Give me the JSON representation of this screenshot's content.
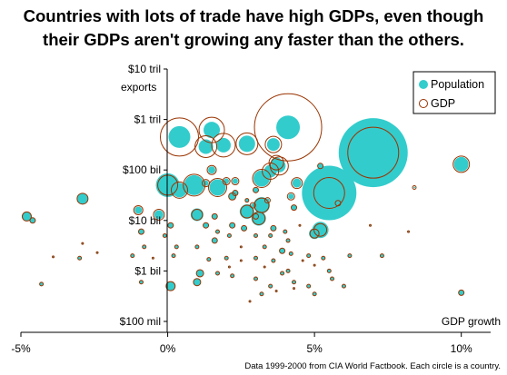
{
  "chart_data": {
    "type": "scatter",
    "title": "Countries with lots of trade have high GDPs, even though",
    "subtitle": "their GDPs aren't growing any faster than the others.",
    "xlabel": "GDP growth",
    "ylabel": "exports",
    "x_scale": "linear",
    "y_scale": "log",
    "xlim": [
      -5,
      11
    ],
    "ylim": [
      0.1,
      10000
    ],
    "x_ticks": [
      {
        "value": -5,
        "label": "-5%"
      },
      {
        "value": 0,
        "label": "0%"
      },
      {
        "value": 5,
        "label": "5%"
      },
      {
        "value": 10,
        "label": "10%"
      }
    ],
    "y_ticks": [
      {
        "value": 10000,
        "label": "$10 tril"
      },
      {
        "value": 1000,
        "label": "$1 tril"
      },
      {
        "value": 100,
        "label": "$100 bil"
      },
      {
        "value": 10,
        "label": "$10 bil"
      },
      {
        "value": 1,
        "label": "$1 bil"
      },
      {
        "value": 0.1,
        "label": "$100 mil"
      }
    ],
    "x_unit": "% GDP growth",
    "y_unit": "exports, US$ billions",
    "legend": {
      "placement": "top-right",
      "items": [
        {
          "label": "Population",
          "marker": "filled-circle",
          "color": "#33cccc"
        },
        {
          "label": "GDP",
          "marker": "open-circle",
          "color": "#993300"
        }
      ]
    },
    "annotation": "Data 1999-2000 from CIA World Factbook. Each circle is a country.",
    "colors": {
      "population": "#33cccc",
      "gdp": "#993300",
      "axis": "#000000"
    },
    "series": [
      {
        "label": "Population",
        "encoding": "bubble area",
        "color": "#33cccc"
      },
      {
        "label": "GDP",
        "encoding": "bubble outline area",
        "color": "#993300"
      }
    ],
    "points": [
      {
        "x": 4.1,
        "y": 700,
        "pop": 13,
        "gdp": 37
      },
      {
        "x": 0.4,
        "y": 450,
        "pop": 12,
        "gdp": 21
      },
      {
        "x": 1.5,
        "y": 620,
        "pop": 9,
        "gdp": 14
      },
      {
        "x": 1.3,
        "y": 290,
        "pop": 8,
        "gdp": 12
      },
      {
        "x": 1.9,
        "y": 310,
        "pop": 8,
        "gdp": 13
      },
      {
        "x": 2.7,
        "y": 330,
        "pop": 9,
        "gdp": 12
      },
      {
        "x": 3.6,
        "y": 320,
        "pop": 7,
        "gdp": 9
      },
      {
        "x": 7.0,
        "y": 220,
        "pop": 38,
        "gdp": 28
      },
      {
        "x": 5.5,
        "y": 35,
        "pop": 30,
        "gdp": 17
      },
      {
        "x": 10.0,
        "y": 130,
        "pop": 8,
        "gdp": 9
      },
      {
        "x": 3.2,
        "y": 68,
        "pop": 9,
        "gdp": 10
      },
      {
        "x": 3.5,
        "y": 95,
        "pop": 7,
        "gdp": 9
      },
      {
        "x": 3.8,
        "y": 120,
        "pop": 7,
        "gdp": 10
      },
      {
        "x": 3.7,
        "y": 140,
        "pop": 6,
        "gdp": 8
      },
      {
        "x": 0.0,
        "y": 50,
        "pop": 13,
        "gdp": 11
      },
      {
        "x": 0.9,
        "y": 50,
        "pop": 11,
        "gdp": 12
      },
      {
        "x": 1.7,
        "y": 45,
        "pop": 9,
        "gdp": 10
      },
      {
        "x": 0.4,
        "y": 40,
        "pop": 8,
        "gdp": 9
      },
      {
        "x": 1.5,
        "y": 100,
        "pop": 4,
        "gdp": 5
      },
      {
        "x": 2.2,
        "y": 30,
        "pop": 4,
        "gdp": 4
      },
      {
        "x": 3.2,
        "y": 20,
        "pop": 9,
        "gdp": 8
      },
      {
        "x": 2.7,
        "y": 15,
        "pop": 8,
        "gdp": 7
      },
      {
        "x": 3.1,
        "y": 11,
        "pop": 8,
        "gdp": 7
      },
      {
        "x": 5.2,
        "y": 6.5,
        "pop": 9,
        "gdp": 7
      },
      {
        "x": 5.0,
        "y": 5.5,
        "pop": 6,
        "gdp": 5
      },
      {
        "x": 1.0,
        "y": 13,
        "pop": 7,
        "gdp": 6
      },
      {
        "x": -1.0,
        "y": 16,
        "pop": 4,
        "gdp": 5
      },
      {
        "x": -0.3,
        "y": 13,
        "pop": 5,
        "gdp": 6
      },
      {
        "x": -4.8,
        "y": 12,
        "pop": 5,
        "gdp": 5
      },
      {
        "x": -4.6,
        "y": 10,
        "pop": 3,
        "gdp": 3
      },
      {
        "x": -2.9,
        "y": 27,
        "pop": 6,
        "gdp": 6
      },
      {
        "x": 4.4,
        "y": 55,
        "pop": 5,
        "gdp": 6
      },
      {
        "x": 5.2,
        "y": 120,
        "pop": 3,
        "gdp": 3
      },
      {
        "x": 2.3,
        "y": 60,
        "pop": 3,
        "gdp": 4
      },
      {
        "x": 2.0,
        "y": 60,
        "pop": 3,
        "gdp": 4
      },
      {
        "x": 1.3,
        "y": 55,
        "pop": 3,
        "gdp": 4
      },
      {
        "x": 3.0,
        "y": 40,
        "pop": 3,
        "gdp": 3
      },
      {
        "x": 2.3,
        "y": 35,
        "pop": 3,
        "gdp": 3
      },
      {
        "x": 2.7,
        "y": 25,
        "pop": 2,
        "gdp": 2
      },
      {
        "x": 4.2,
        "y": 30,
        "pop": 3,
        "gdp": 4
      },
      {
        "x": 2.9,
        "y": 20,
        "pop": 2,
        "gdp": 3
      },
      {
        "x": 3.4,
        "y": 25,
        "pop": 2,
        "gdp": 3
      },
      {
        "x": 5.8,
        "y": 22,
        "pop": 2,
        "gdp": 3
      },
      {
        "x": 4.3,
        "y": 18,
        "pop": 3,
        "gdp": 3
      },
      {
        "x": 1.6,
        "y": 12,
        "pop": 3,
        "gdp": 3
      },
      {
        "x": 0.1,
        "y": 8,
        "pop": 3,
        "gdp": 3
      },
      {
        "x": 1.3,
        "y": 8,
        "pop": 3,
        "gdp": 3
      },
      {
        "x": 2.2,
        "y": 8,
        "pop": 3,
        "gdp": 3
      },
      {
        "x": 2.6,
        "y": 7,
        "pop": 3,
        "gdp": 3
      },
      {
        "x": 3.6,
        "y": 7,
        "pop": 3,
        "gdp": 3
      },
      {
        "x": 4.0,
        "y": 6,
        "pop": 2,
        "gdp": 2
      },
      {
        "x": 4.5,
        "y": 8,
        "pop": 1,
        "gdp": 1
      },
      {
        "x": 6.9,
        "y": 8,
        "pop": 1,
        "gdp": 1
      },
      {
        "x": 8.2,
        "y": 6,
        "pop": 1,
        "gdp": 1
      },
      {
        "x": 8.4,
        "y": 45,
        "pop": 1,
        "gdp": 2
      },
      {
        "x": 3.0,
        "y": 12,
        "pop": 3,
        "gdp": 3
      },
      {
        "x": 1.7,
        "y": 6,
        "pop": 2,
        "gdp": 2
      },
      {
        "x": -0.9,
        "y": 6,
        "pop": 3,
        "gdp": 3
      },
      {
        "x": -0.1,
        "y": 5,
        "pop": 2,
        "gdp": 2
      },
      {
        "x": 1.6,
        "y": 4,
        "pop": 3,
        "gdp": 3
      },
      {
        "x": 2.1,
        "y": 5,
        "pop": 2,
        "gdp": 2
      },
      {
        "x": 3.0,
        "y": 5,
        "pop": 2,
        "gdp": 2
      },
      {
        "x": 3.5,
        "y": 5,
        "pop": 2,
        "gdp": 2
      },
      {
        "x": 4.1,
        "y": 4,
        "pop": 2,
        "gdp": 2
      },
      {
        "x": 0.3,
        "y": 3,
        "pop": 2,
        "gdp": 2
      },
      {
        "x": 1.0,
        "y": 3,
        "pop": 2,
        "gdp": 2
      },
      {
        "x": -0.8,
        "y": 3,
        "pop": 2,
        "gdp": 2
      },
      {
        "x": 2.5,
        "y": 3,
        "pop": 1,
        "gdp": 1
      },
      {
        "x": 3.3,
        "y": 3,
        "pop": 2,
        "gdp": 2
      },
      {
        "x": 3.9,
        "y": 2.5,
        "pop": 3,
        "gdp": 3
      },
      {
        "x": 4.2,
        "y": 2.2,
        "pop": 2,
        "gdp": 2
      },
      {
        "x": 4.8,
        "y": 2.0,
        "pop": 2,
        "gdp": 2
      },
      {
        "x": 6.2,
        "y": 2.0,
        "pop": 2,
        "gdp": 2
      },
      {
        "x": 7.3,
        "y": 2.0,
        "pop": 2,
        "gdp": 2
      },
      {
        "x": 5.3,
        "y": 1.8,
        "pop": 2,
        "gdp": 2
      },
      {
        "x": -1.2,
        "y": 2,
        "pop": 2,
        "gdp": 2
      },
      {
        "x": -0.5,
        "y": 1.8,
        "pop": 1,
        "gdp": 1
      },
      {
        "x": 0.2,
        "y": 2,
        "pop": 2,
        "gdp": 2
      },
      {
        "x": 1.4,
        "y": 1.7,
        "pop": 2,
        "gdp": 2
      },
      {
        "x": 2.0,
        "y": 1.8,
        "pop": 2,
        "gdp": 2
      },
      {
        "x": 2.5,
        "y": 1.6,
        "pop": 1,
        "gdp": 1
      },
      {
        "x": 3.0,
        "y": 1.8,
        "pop": 2,
        "gdp": 2
      },
      {
        "x": 3.6,
        "y": 1.6,
        "pop": 2,
        "gdp": 2
      },
      {
        "x": 4.6,
        "y": 1.6,
        "pop": 1,
        "gdp": 1
      },
      {
        "x": -3.0,
        "y": 1.8,
        "pop": 2,
        "gdp": 2
      },
      {
        "x": -2.4,
        "y": 2.3,
        "pop": 1,
        "gdp": 1
      },
      {
        "x": -2.9,
        "y": 3.5,
        "pop": 1,
        "gdp": 1
      },
      {
        "x": -3.9,
        "y": 1.9,
        "pop": 1,
        "gdp": 1
      },
      {
        "x": 1.1,
        "y": 0.9,
        "pop": 4,
        "gdp": 4
      },
      {
        "x": 1.0,
        "y": 0.6,
        "pop": 4,
        "gdp": 4
      },
      {
        "x": 0.1,
        "y": 0.5,
        "pop": 5,
        "gdp": 5
      },
      {
        "x": 1.7,
        "y": 0.9,
        "pop": 2,
        "gdp": 2
      },
      {
        "x": 2.2,
        "y": 0.8,
        "pop": 2,
        "gdp": 2
      },
      {
        "x": 3.0,
        "y": 0.7,
        "pop": 2,
        "gdp": 2
      },
      {
        "x": 3.5,
        "y": 0.5,
        "pop": 2,
        "gdp": 2
      },
      {
        "x": 4.3,
        "y": 0.6,
        "pop": 2,
        "gdp": 2
      },
      {
        "x": 4.8,
        "y": 0.5,
        "pop": 2,
        "gdp": 2
      },
      {
        "x": 3.9,
        "y": 0.9,
        "pop": 2,
        "gdp": 2
      },
      {
        "x": 4.1,
        "y": 1.0,
        "pop": 2,
        "gdp": 2
      },
      {
        "x": 5.5,
        "y": 1.0,
        "pop": 2,
        "gdp": 2
      },
      {
        "x": 5.6,
        "y": 0.7,
        "pop": 2,
        "gdp": 2
      },
      {
        "x": -0.9,
        "y": 0.6,
        "pop": 2,
        "gdp": 2
      },
      {
        "x": -4.3,
        "y": 0.55,
        "pop": 2,
        "gdp": 2
      },
      {
        "x": 3.2,
        "y": 0.35,
        "pop": 2,
        "gdp": 2
      },
      {
        "x": 5.0,
        "y": 0.35,
        "pop": 2,
        "gdp": 2
      },
      {
        "x": 6.0,
        "y": 0.5,
        "pop": 2,
        "gdp": 2
      },
      {
        "x": 10.0,
        "y": 0.37,
        "pop": 3,
        "gdp": 3
      },
      {
        "x": 2.8,
        "y": 0.25,
        "pop": 1,
        "gdp": 1
      },
      {
        "x": 3.7,
        "y": 0.4,
        "pop": 1,
        "gdp": 1
      },
      {
        "x": 4.3,
        "y": 0.45,
        "pop": 1,
        "gdp": 1
      },
      {
        "x": 2.1,
        "y": 1.2,
        "pop": 1,
        "gdp": 1
      },
      {
        "x": 5.0,
        "y": 1.3,
        "pop": 1,
        "gdp": 1
      },
      {
        "x": 3.3,
        "y": 1.2,
        "pop": 1,
        "gdp": 1
      }
    ]
  }
}
